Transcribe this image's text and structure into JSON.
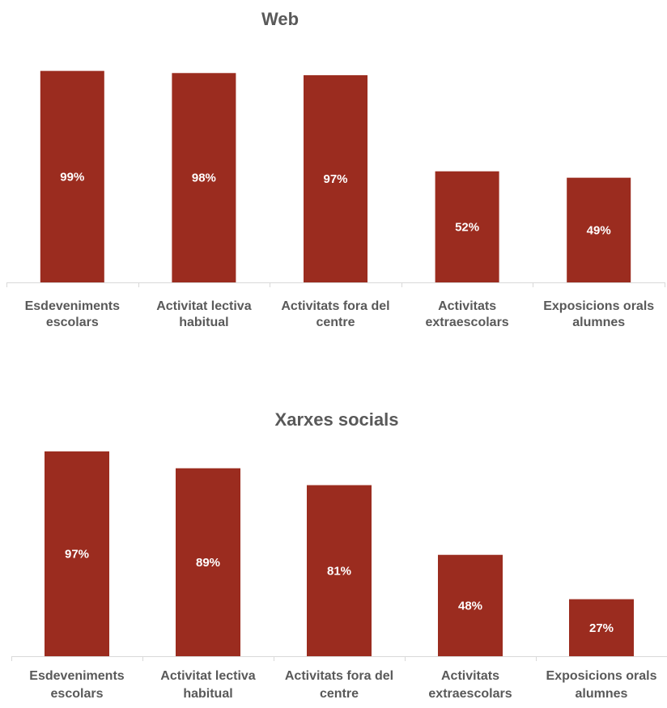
{
  "chart_data": [
    {
      "type": "bar",
      "title": "Web",
      "categories": [
        [
          "Esdeveniments",
          "escolars"
        ],
        [
          "Activitat lectiva",
          "habitual"
        ],
        [
          "Activitats fora del",
          "centre"
        ],
        [
          "Activitats",
          "extraescolars"
        ],
        [
          "Exposicions orals",
          "alumnes"
        ]
      ],
      "values": [
        99,
        98,
        97,
        52,
        49
      ],
      "data_labels": [
        "99%",
        "98%",
        "97%",
        "52%",
        "49%"
      ],
      "ylim": [
        0,
        100
      ],
      "grid": false,
      "bar_color": "#9B2C1F"
    },
    {
      "type": "bar",
      "title": "Xarxes socials",
      "categories": [
        [
          "Esdeveniments",
          "escolars"
        ],
        [
          "Activitat lectiva",
          "habitual"
        ],
        [
          "Activitats fora del",
          "centre"
        ],
        [
          "Activitats",
          "extraescolars"
        ],
        [
          "Exposicions orals",
          "alumnes"
        ]
      ],
      "values": [
        97,
        89,
        81,
        48,
        27
      ],
      "data_labels": [
        "97%",
        "89%",
        "81%",
        "48%",
        "27%"
      ],
      "ylim": [
        0,
        100
      ],
      "grid": false,
      "bar_color": "#9B2C1F"
    }
  ]
}
